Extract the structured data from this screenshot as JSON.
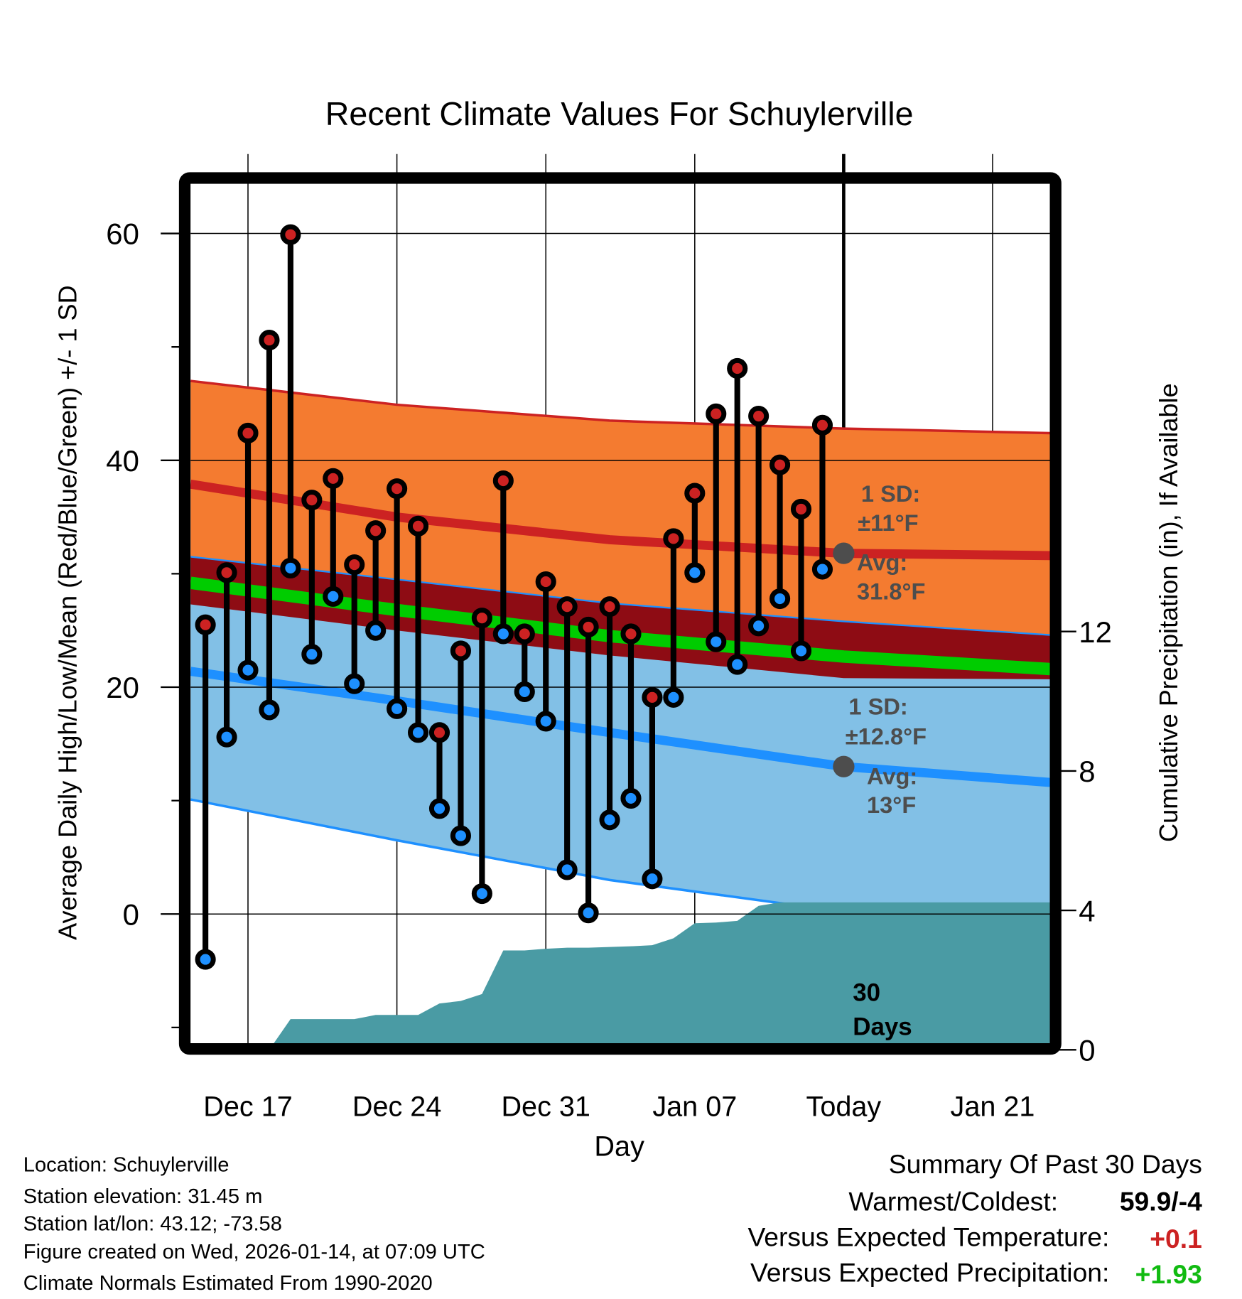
{
  "chart_data": {
    "type": "line",
    "title": "Recent Climate Values For Schuylerville",
    "xlabel": "Day",
    "ylabel": "Average Daily High/Low/Mean (Red/Blue/Green) +/- 1 SD",
    "y2label": "Cumulative Precipitation (in), If Available",
    "ylim": [
      -11.4,
      64.4
    ],
    "y2lim": [
      0,
      24.8
    ],
    "grid": true,
    "x_ticks": [
      {
        "day": 2,
        "label": "Dec 17"
      },
      {
        "day": 9,
        "label": "Dec 24"
      },
      {
        "day": 16,
        "label": "Dec 31"
      },
      {
        "day": 23,
        "label": "Jan 07"
      },
      {
        "day": 30,
        "label": "Today"
      },
      {
        "day": 37,
        "label": "Jan 21"
      }
    ],
    "y_ticks": [
      {
        "value": 60,
        "label": "60"
      },
      {
        "value": 40,
        "label": "40"
      },
      {
        "value": 20,
        "label": "20"
      },
      {
        "value": 0,
        "label": "0"
      }
    ],
    "y_minor_ticks": [
      50,
      30,
      10,
      -10
    ],
    "y2_ticks": [
      {
        "value": 12,
        "label": "12"
      },
      {
        "value": 8,
        "label": "8"
      },
      {
        "value": 4,
        "label": "4"
      },
      {
        "value": 0,
        "label": "0"
      }
    ],
    "days": [
      "Dec 15",
      "Dec 16",
      "Dec 17",
      "Dec 18",
      "Dec 19",
      "Dec 20",
      "Dec 21",
      "Dec 22",
      "Dec 23",
      "Dec 24",
      "Dec 25",
      "Dec 26",
      "Dec 27",
      "Dec 28",
      "Dec 29",
      "Dec 30",
      "Dec 31",
      "Jan 01",
      "Jan 02",
      "Jan 03",
      "Jan 04",
      "Jan 05",
      "Jan 06",
      "Jan 07",
      "Jan 08",
      "Jan 09",
      "Jan 10",
      "Jan 11",
      "Jan 12",
      "Jan 13"
    ],
    "series": [
      {
        "name": "High",
        "color": "#cc2222",
        "values": [
          25.5,
          30.1,
          42.4,
          50.6,
          59.9,
          36.5,
          38.4,
          30.8,
          33.8,
          37.5,
          34.2,
          16.0,
          23.2,
          26.1,
          38.2,
          24.7,
          29.3,
          27.1,
          25.3,
          27.1,
          24.7,
          19.1,
          33.1,
          37.1,
          44.1,
          48.1,
          43.9,
          39.6,
          35.7,
          43.1
        ]
      },
      {
        "name": "Low",
        "color": "#1e90ff",
        "values": [
          -4.0,
          15.6,
          21.5,
          18.0,
          30.5,
          22.9,
          28.0,
          20.3,
          25.0,
          18.1,
          16.0,
          9.3,
          6.9,
          1.8,
          24.7,
          19.6,
          17.0,
          3.9,
          0.1,
          8.3,
          10.2,
          3.1,
          19.1,
          30.1,
          24.0,
          22.0,
          25.4,
          27.8,
          23.2,
          30.4
        ]
      },
      {
        "name": "Cumulative Precipitation",
        "color": "#4a9ba4",
        "axis": "y2",
        "values": [
          0,
          0,
          0,
          0,
          0.88,
          0.88,
          0.88,
          0.88,
          1.0,
          1.0,
          1.0,
          1.33,
          1.4,
          1.6,
          2.85,
          2.85,
          2.9,
          2.93,
          2.93,
          2.95,
          2.97,
          3.0,
          3.2,
          3.63,
          3.65,
          3.7,
          4.13,
          4.23,
          4.23,
          4.23
        ]
      }
    ],
    "normals": {
      "day": [
        -0.7,
        9,
        19,
        30,
        39.7
      ],
      "high_upper": [
        47.0,
        44.9,
        43.5,
        42.8,
        42.4
      ],
      "high_mean": [
        37.9,
        35.0,
        33.0,
        31.8,
        31.6
      ],
      "high_lower": [
        27.3,
        25.0,
        22.8,
        20.8,
        20.7
      ],
      "mean": [
        29.2,
        26.8,
        24.5,
        22.7,
        21.6
      ],
      "low_upper": [
        31.5,
        29.5,
        27.4,
        25.8,
        24.6
      ],
      "low_mean": [
        21.4,
        18.8,
        16.0,
        13.0,
        11.6
      ],
      "low_lower": [
        10.1,
        6.5,
        3.0,
        0.2,
        -1.0
      ]
    },
    "colors": {
      "high_band": "#f47b30",
      "overlap": "#8e0c14",
      "mean": "#00cc00",
      "low_band": "#82c0e6",
      "high_line": "#cc2222",
      "low_line": "#1e90ff",
      "precip": "#4a9ba4"
    },
    "annotations": {
      "high_sd_label": "1 SD:",
      "high_sd_value": "±11°F",
      "high_avg_label": "Avg:",
      "high_avg_value": "31.8°F",
      "low_sd_label": "1 SD:",
      "low_sd_value": "±12.8°F",
      "low_avg_label": "Avg:",
      "low_avg_value": "13°F",
      "window_num": "30",
      "window_unit": "Days",
      "high_avg": 31.8,
      "low_avg": 13.0
    }
  },
  "footer": {
    "location": "Location: Schuylerville",
    "elevation": "Station elevation: 31.45 m",
    "latlon": "Station lat/lon: 43.12; -73.58",
    "created": "Figure created on Wed, 2026-01-14, at 07:09 UTC",
    "normals": "Climate Normals Estimated From 1990-2020"
  },
  "summary": {
    "title": "Summary Of Past 30 Days",
    "warm_cold_label": "Warmest/Coldest:",
    "warm_cold_value": "59.9/-4",
    "temp_label": "Versus Expected Temperature:",
    "temp_value": "+0.1",
    "temp_color": "#cc2222",
    "precip_label": "Versus Expected Precipitation:",
    "precip_value": "+1.93",
    "precip_color": "#11bb11"
  }
}
